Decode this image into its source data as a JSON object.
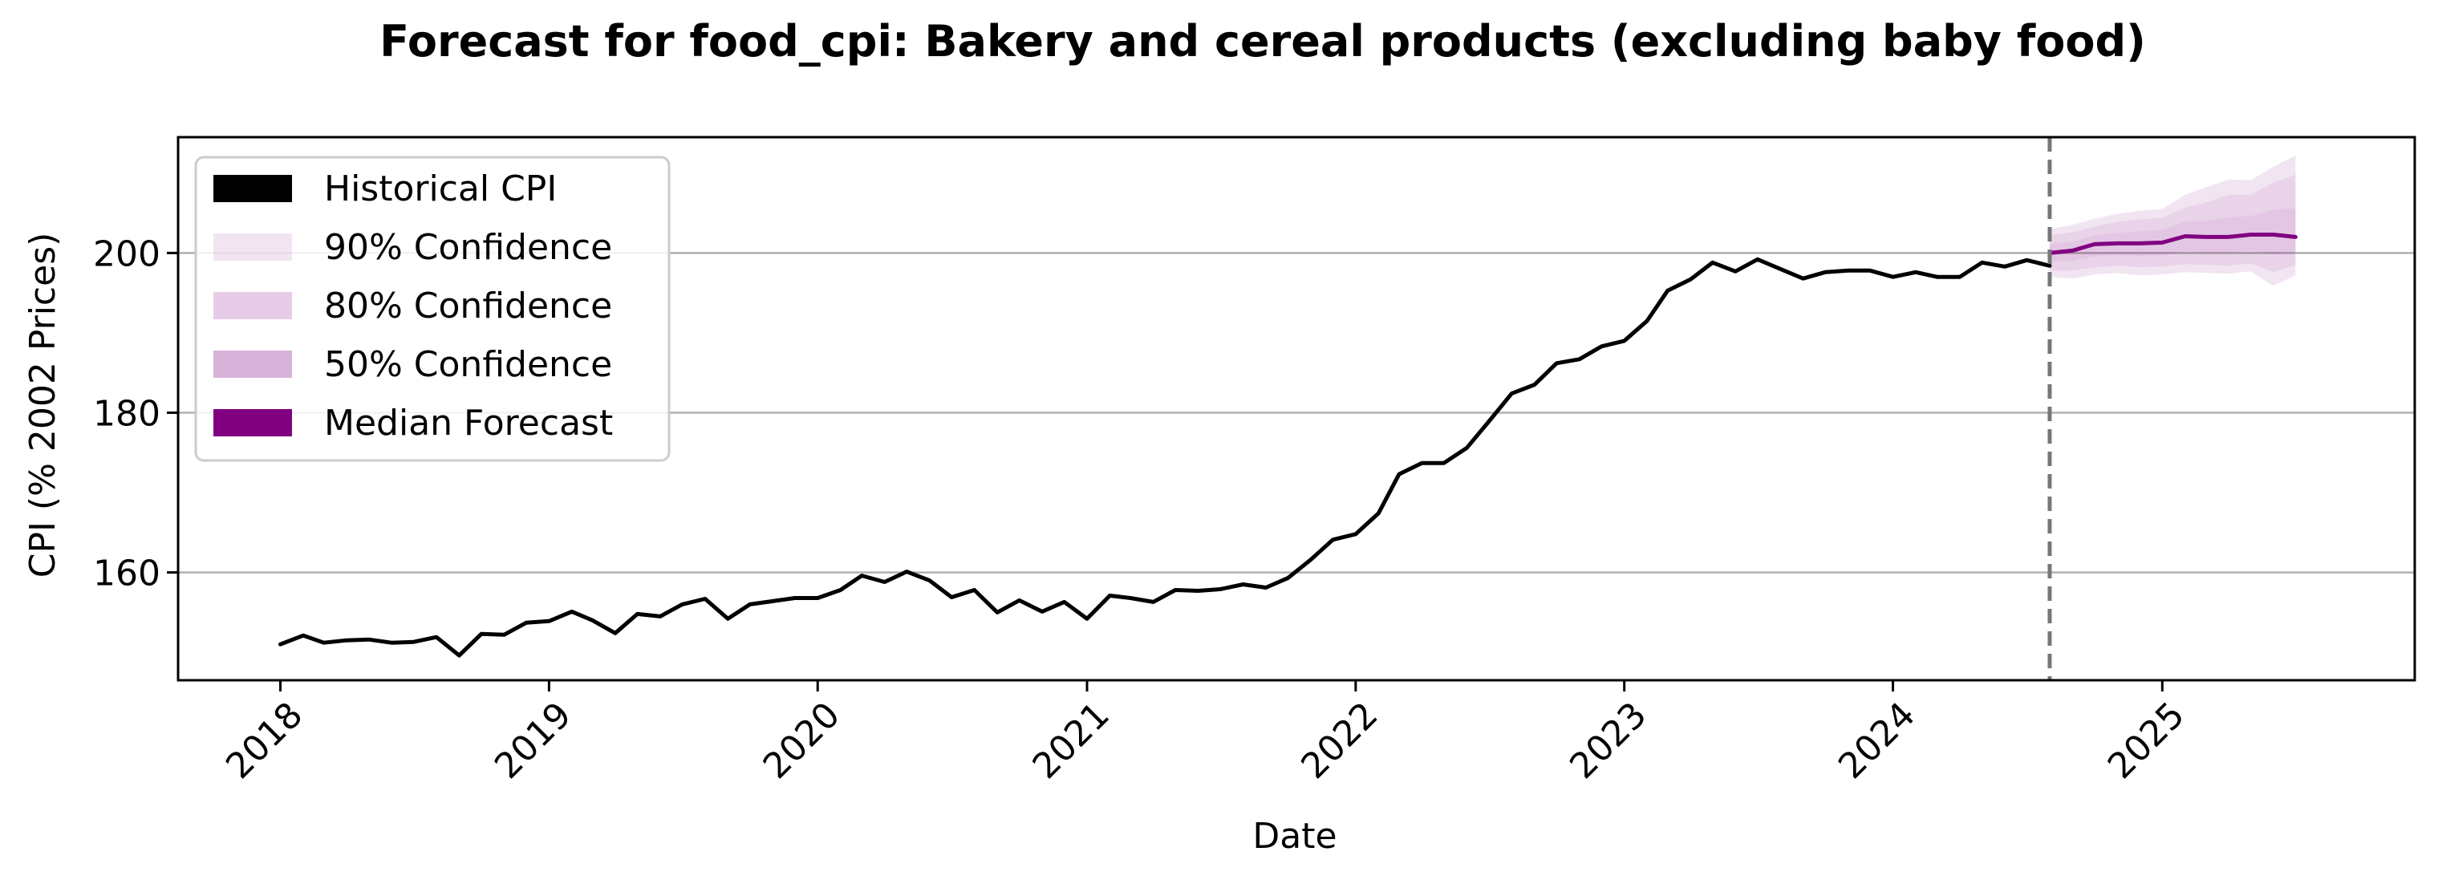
{
  "chart_data": {
    "type": "line",
    "title": "Forecast for food_cpi: Bakery and cereal products (excluding baby food)",
    "xlabel": "Date",
    "ylabel": "CPI (% 2002 Prices)",
    "xlim": [
      "2017-08-15",
      "2025-12-10"
    ],
    "ylim": [
      146.5,
      214.5
    ],
    "x_ticks": [
      "2018",
      "2019",
      "2020",
      "2021",
      "2022",
      "2023",
      "2024",
      "2025"
    ],
    "y_ticks": [
      160,
      180,
      200
    ],
    "grid": "horizontal",
    "legend_position": "top-left",
    "forecast_start": "2024-08-01",
    "legend": [
      {
        "label": "Historical CPI",
        "color": "#000000",
        "opacity": 1
      },
      {
        "label": "90% Confidence",
        "color": "#800080",
        "opacity": 0.1
      },
      {
        "label": "80% Confidence",
        "color": "#800080",
        "opacity": 0.2
      },
      {
        "label": "50% Confidence",
        "color": "#800080",
        "opacity": 0.3
      },
      {
        "label": "Median Forecast",
        "color": "#800080",
        "opacity": 1
      }
    ],
    "historical": {
      "name": "Historical CPI",
      "color": "#000000",
      "x": [
        "2018-01",
        "2018-02",
        "2018-03",
        "2018-04",
        "2018-05",
        "2018-06",
        "2018-07",
        "2018-08",
        "2018-09",
        "2018-10",
        "2018-11",
        "2018-12",
        "2019-01",
        "2019-02",
        "2019-03",
        "2019-04",
        "2019-05",
        "2019-06",
        "2019-07",
        "2019-08",
        "2019-09",
        "2019-10",
        "2019-11",
        "2019-12",
        "2020-01",
        "2020-02",
        "2020-03",
        "2020-04",
        "2020-05",
        "2020-06",
        "2020-07",
        "2020-08",
        "2020-09",
        "2020-10",
        "2020-11",
        "2020-12",
        "2021-01",
        "2021-02",
        "2021-03",
        "2021-04",
        "2021-05",
        "2021-06",
        "2021-07",
        "2021-08",
        "2021-09",
        "2021-10",
        "2021-11",
        "2021-12",
        "2022-01",
        "2022-02",
        "2022-03",
        "2022-04",
        "2022-05",
        "2022-06",
        "2022-07",
        "2022-08",
        "2022-09",
        "2022-10",
        "2022-11",
        "2022-12",
        "2023-01",
        "2023-02",
        "2023-03",
        "2023-04",
        "2023-05",
        "2023-06",
        "2023-07",
        "2023-08",
        "2023-09",
        "2023-10",
        "2023-11",
        "2023-12",
        "2024-01",
        "2024-02",
        "2024-03",
        "2024-04",
        "2024-05",
        "2024-06",
        "2024-07",
        "2024-08"
      ],
      "y": [
        151.0,
        152.1,
        151.2,
        151.5,
        151.6,
        151.2,
        151.3,
        151.9,
        149.6,
        152.3,
        152.2,
        153.7,
        153.9,
        155.1,
        154.0,
        152.4,
        154.8,
        154.5,
        156.0,
        156.7,
        154.2,
        156.0,
        156.4,
        156.8,
        156.8,
        157.8,
        159.6,
        158.8,
        160.1,
        159.0,
        156.9,
        157.8,
        155.0,
        156.5,
        155.1,
        156.3,
        154.2,
        157.1,
        156.8,
        156.3,
        157.8,
        157.7,
        157.9,
        158.5,
        158.1,
        159.3,
        161.6,
        164.1,
        164.8,
        167.4,
        172.3,
        173.7,
        173.7,
        175.6,
        178.9,
        182.4,
        183.5,
        186.2,
        186.7,
        188.3,
        189.0,
        191.5,
        195.3,
        196.7,
        198.8,
        197.7,
        199.2,
        198.0,
        196.8,
        197.6,
        197.8,
        197.8,
        197.0,
        197.6,
        197.0,
        197.0,
        198.8,
        198.3,
        199.1,
        198.4
      ]
    },
    "forecast": {
      "name": "Median Forecast",
      "color": "#800080",
      "x": [
        "2024-08",
        "2024-09",
        "2024-10",
        "2024-11",
        "2024-12",
        "2025-01",
        "2025-02",
        "2025-03",
        "2025-04",
        "2025-05",
        "2025-06",
        "2025-07"
      ],
      "median": [
        200.0,
        200.3,
        201.1,
        201.2,
        201.2,
        201.3,
        202.1,
        202.0,
        202.0,
        202.3,
        202.3,
        202.0
      ],
      "ci90_low": [
        197.0,
        196.8,
        197.3,
        197.5,
        197.2,
        197.3,
        197.6,
        197.5,
        197.4,
        197.7,
        195.9,
        197.2
      ],
      "ci90_high": [
        203.0,
        203.5,
        204.3,
        204.9,
        205.3,
        205.5,
        207.3,
        208.2,
        209.2,
        209.1,
        210.8,
        212.2
      ],
      "ci80_low": [
        197.8,
        197.8,
        198.2,
        198.4,
        198.2,
        198.3,
        198.6,
        198.5,
        198.4,
        198.7,
        197.6,
        198.5
      ],
      "ci80_high": [
        202.2,
        202.6,
        203.3,
        203.9,
        204.2,
        204.4,
        205.7,
        206.3,
        207.3,
        207.3,
        208.8,
        209.8
      ],
      "ci50_low": [
        198.9,
        199.0,
        199.6,
        199.7,
        199.6,
        199.7,
        200.2,
        200.0,
        200.0,
        200.3,
        199.8,
        200.2
      ],
      "ci50_high": [
        201.1,
        201.4,
        202.2,
        202.5,
        202.7,
        202.9,
        203.9,
        204.0,
        204.5,
        204.6,
        205.4,
        205.6
      ]
    }
  }
}
